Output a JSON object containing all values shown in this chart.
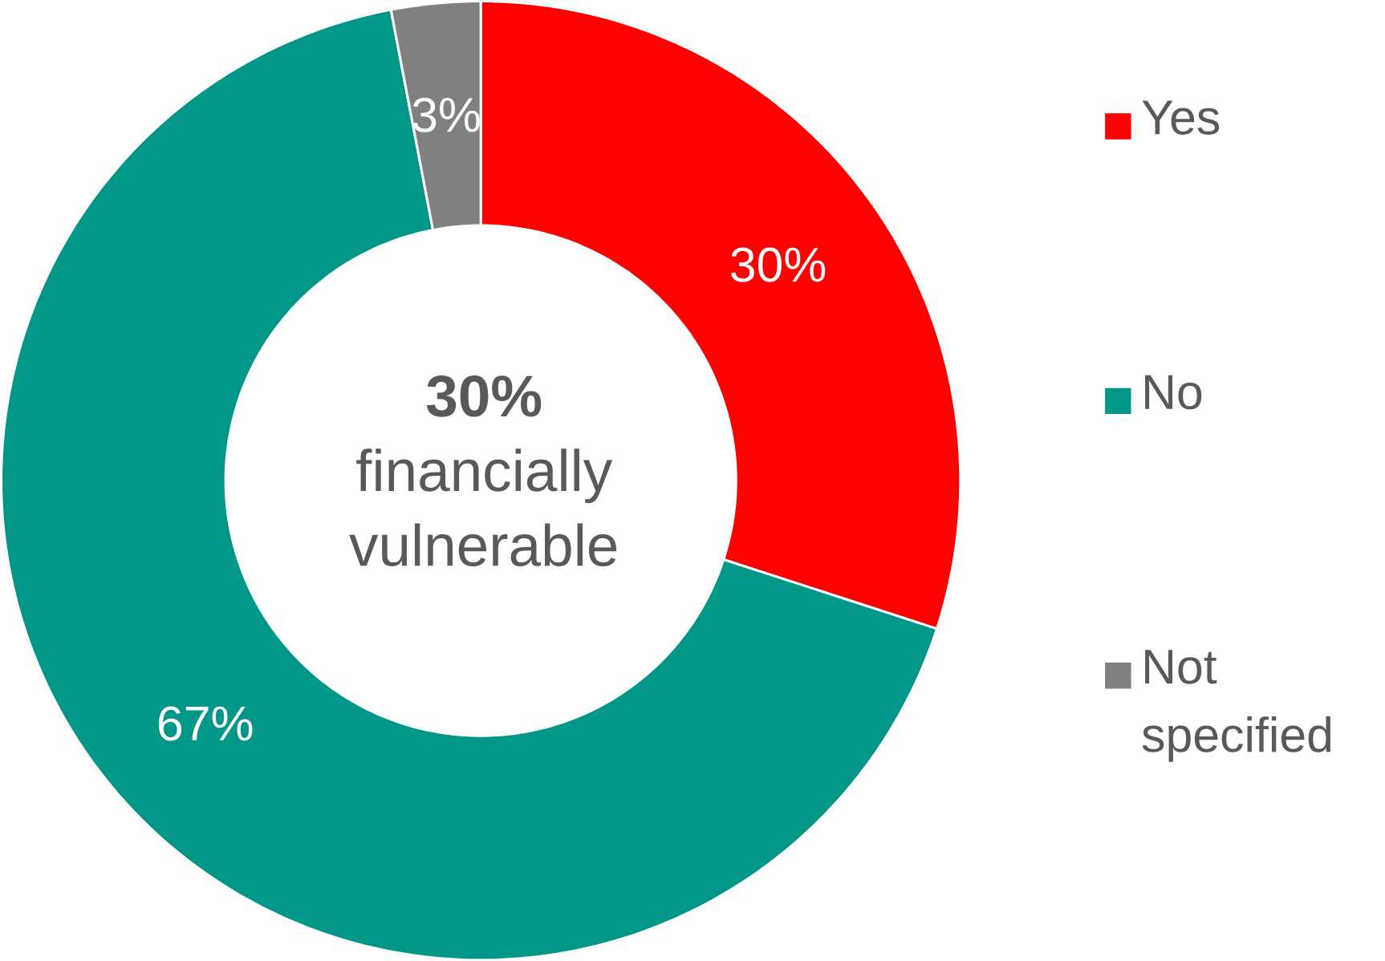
{
  "chart_data": {
    "type": "donut",
    "categories": [
      "Yes",
      "No",
      "Not specified"
    ],
    "values": [
      30,
      67,
      3
    ],
    "value_labels": [
      "30%",
      "67%",
      "3%"
    ],
    "colors": [
      "#ff0000",
      "#009688",
      "#808080"
    ],
    "legend": "right",
    "annotations": [
      "**30%** financially vulnerable"
    ]
  }
}
